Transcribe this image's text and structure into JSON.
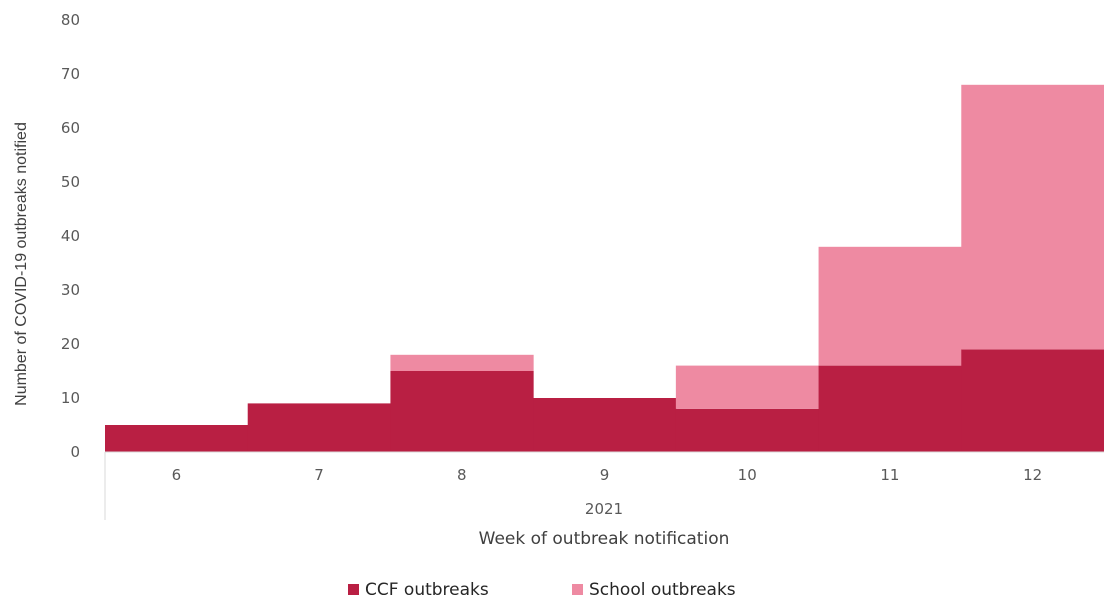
{
  "chart_data": {
    "type": "bar",
    "stacked": true,
    "categories": [
      "6",
      "7",
      "8",
      "9",
      "10",
      "11",
      "12"
    ],
    "group_label": "2021",
    "series": [
      {
        "name": "CCF outbreaks",
        "color": "#B91F43",
        "values": [
          5,
          9,
          15,
          10,
          8,
          16,
          19
        ]
      },
      {
        "name": "School outbreaks",
        "color": "#EE8AA2",
        "values": [
          0,
          0,
          3,
          0,
          8,
          22,
          49
        ]
      }
    ],
    "xlabel": "Week of outbreak notification",
    "ylabel": "Number of COVID-19 outbreaks notified",
    "ylim": [
      0,
      80
    ],
    "yticks": [
      0,
      10,
      20,
      30,
      40,
      50,
      60,
      70,
      80
    ],
    "grid": false,
    "legend_position": "bottom"
  }
}
